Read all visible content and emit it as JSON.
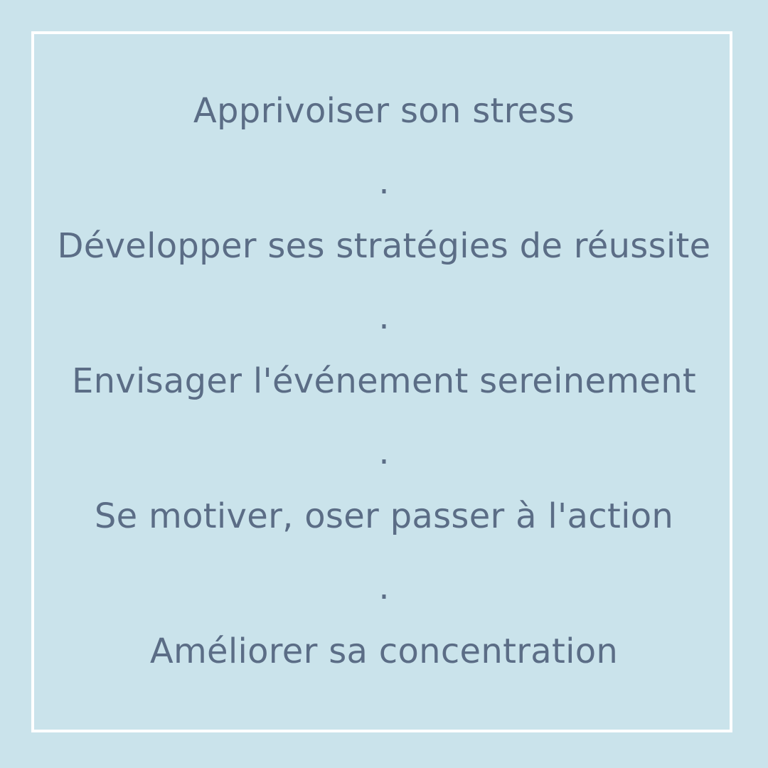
{
  "lines": [
    "Apprivoiser son stress",
    "Développer ses stratégies de réussite",
    "Envisager l'événement sereinement",
    "Se motiver, oser passer à l'action",
    "Améliorer sa concentration"
  ],
  "separator": ".",
  "colors": {
    "background": "#cae3eb",
    "frame": "#ffffff",
    "text": "#5b6d86"
  }
}
